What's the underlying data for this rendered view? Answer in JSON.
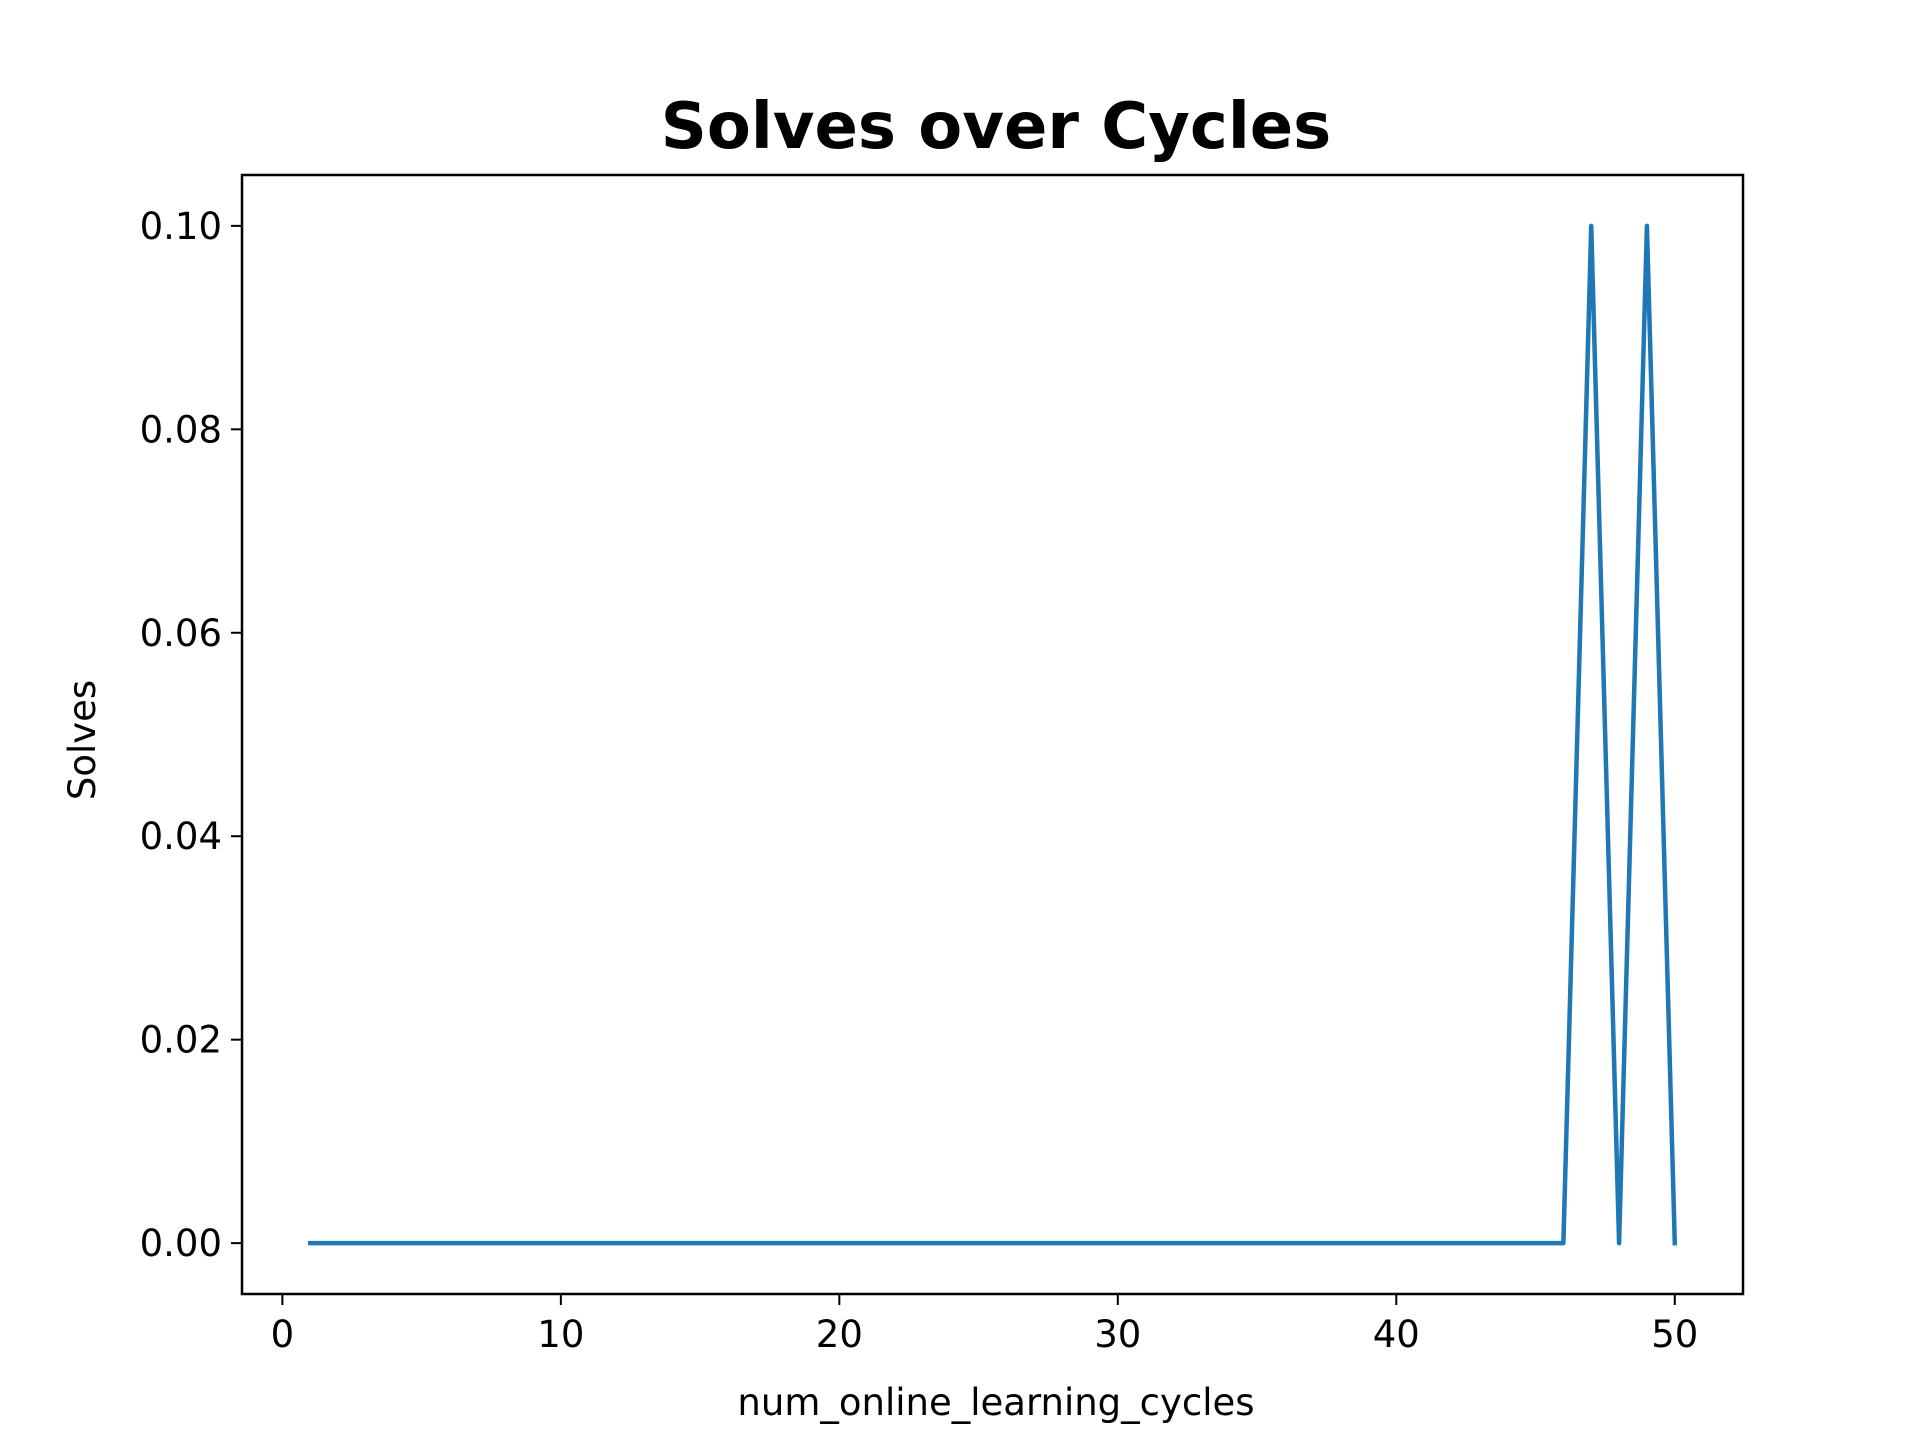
{
  "chart_data": {
    "type": "line",
    "title": "Solves over Cycles",
    "xlabel": "num_online_learning_cycles",
    "ylabel": "Solves",
    "xlim": [
      -1.45,
      52.45
    ],
    "ylim": [
      -0.005,
      0.105
    ],
    "grid": false,
    "legend": "none",
    "x_ticks": [
      0,
      10,
      20,
      30,
      40,
      50
    ],
    "x_tick_labels": [
      "0",
      "10",
      "20",
      "30",
      "40",
      "50"
    ],
    "y_ticks": [
      0.0,
      0.02,
      0.04,
      0.06,
      0.08,
      0.1
    ],
    "y_tick_labels": [
      "0.00",
      "0.02",
      "0.04",
      "0.06",
      "0.08",
      "0.10"
    ],
    "x": [
      1,
      2,
      3,
      4,
      5,
      6,
      7,
      8,
      9,
      10,
      11,
      12,
      13,
      14,
      15,
      16,
      17,
      18,
      19,
      20,
      21,
      22,
      23,
      24,
      25,
      26,
      27,
      28,
      29,
      30,
      31,
      32,
      33,
      34,
      35,
      36,
      37,
      38,
      39,
      40,
      41,
      42,
      43,
      44,
      45,
      46,
      47,
      48,
      49,
      50
    ],
    "series": [
      {
        "color": "#1f77b4",
        "values": [
          0,
          0,
          0,
          0,
          0,
          0,
          0,
          0,
          0,
          0,
          0,
          0,
          0,
          0,
          0,
          0,
          0,
          0,
          0,
          0,
          0,
          0,
          0,
          0,
          0,
          0,
          0,
          0,
          0,
          0,
          0,
          0,
          0,
          0,
          0,
          0,
          0,
          0,
          0,
          0,
          0,
          0,
          0,
          0,
          0,
          0,
          0.1,
          0,
          0.1,
          0
        ]
      }
    ]
  }
}
